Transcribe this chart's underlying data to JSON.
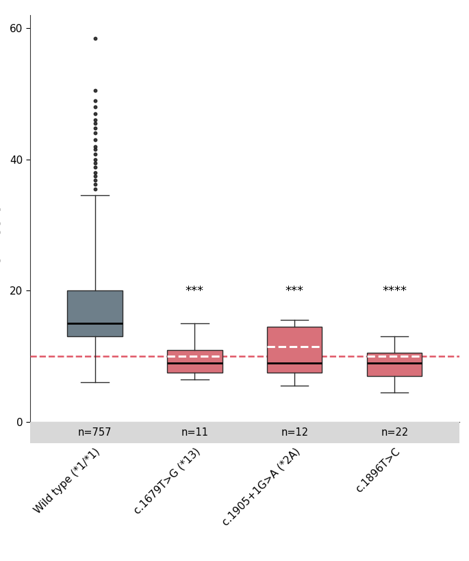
{
  "categories": [
    "Wild type (*1/*1)",
    "c.1679T>G (*13)",
    "c.1905+1G>A (*2A)",
    "c.1896T>C"
  ],
  "n_labels": [
    "n=757",
    "n=11",
    "n=12",
    "n=22"
  ],
  "significance": [
    "",
    "***",
    "***",
    "****"
  ],
  "ylim": [
    0,
    62
  ],
  "yticks": [
    0,
    20,
    40,
    60
  ],
  "ref_line": 10,
  "box_colors": [
    "#6e7f8a",
    "#d9717a",
    "#d9717a",
    "#d9717a"
  ],
  "box_edge_color": "#2a2a2a",
  "wt_stats": {
    "median": 15.0,
    "q1": 13.0,
    "q3": 20.0,
    "whislo": 6.0,
    "whishi": 34.5,
    "fliers": [
      35.5,
      36.2,
      36.8,
      37.5,
      38.0,
      38.8,
      39.5,
      40.0,
      40.8,
      41.5,
      42.0,
      43.0,
      44.0,
      44.8,
      45.5,
      46.0,
      47.0,
      48.0,
      49.0,
      50.5,
      58.5
    ]
  },
  "grp2_stats": {
    "median": 9.0,
    "mean": 10.0,
    "q1": 7.5,
    "q3": 11.0,
    "whislo": 6.5,
    "whishi": 15.0,
    "fliers": []
  },
  "grp3_stats": {
    "median": 9.0,
    "mean": 11.5,
    "q1": 7.5,
    "q3": 14.5,
    "whislo": 5.5,
    "whishi": 15.5,
    "fliers": []
  },
  "grp4_stats": {
    "median": 9.0,
    "mean": 10.0,
    "q1": 7.0,
    "q3": 10.5,
    "whislo": 4.5,
    "whishi": 13.0,
    "fliers": []
  },
  "background_color": "#ffffff",
  "strip_color": "#d8d8d8",
  "sig_fontsize": 13,
  "tick_fontsize": 11,
  "ylabel_fontsize": 13,
  "xlabel_fontsize": 11,
  "n_label_fontsize": 10.5
}
